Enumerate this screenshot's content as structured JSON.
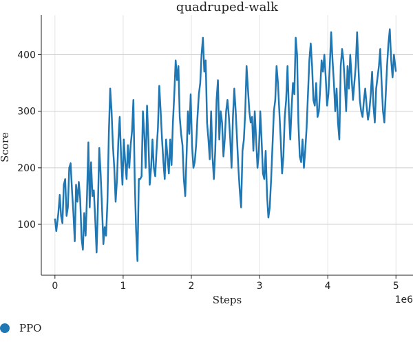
{
  "chart_data": {
    "type": "line",
    "title": "quadruped-walk",
    "xlabel": "Steps",
    "ylabel": "Score",
    "x_offset_label": "1e6",
    "xlim": [
      -0.2,
      5.25
    ],
    "ylim": [
      10,
      470
    ],
    "xticks": [
      0,
      1,
      2,
      3,
      4,
      5
    ],
    "yticks": [
      100,
      200,
      300,
      400
    ],
    "grid": true,
    "legend_position": "bottom-left",
    "series": [
      {
        "name": "PPO",
        "color": "#1f77b4",
        "points": [
          [
            0.0,
            110
          ],
          [
            0.02,
            88
          ],
          [
            0.05,
            120
          ],
          [
            0.07,
            152
          ],
          [
            0.09,
            115
          ],
          [
            0.11,
            102
          ],
          [
            0.13,
            170
          ],
          [
            0.15,
            180
          ],
          [
            0.17,
            115
          ],
          [
            0.19,
            130
          ],
          [
            0.21,
            200
          ],
          [
            0.23,
            208
          ],
          [
            0.25,
            160
          ],
          [
            0.27,
            120
          ],
          [
            0.29,
            70
          ],
          [
            0.31,
            170
          ],
          [
            0.33,
            140
          ],
          [
            0.35,
            175
          ],
          [
            0.37,
            145
          ],
          [
            0.39,
            75
          ],
          [
            0.41,
            55
          ],
          [
            0.43,
            120
          ],
          [
            0.45,
            80
          ],
          [
            0.47,
            150
          ],
          [
            0.49,
            245
          ],
          [
            0.51,
            130
          ],
          [
            0.53,
            210
          ],
          [
            0.55,
            150
          ],
          [
            0.57,
            160
          ],
          [
            0.59,
            110
          ],
          [
            0.61,
            50
          ],
          [
            0.63,
            130
          ],
          [
            0.65,
            235
          ],
          [
            0.67,
            190
          ],
          [
            0.69,
            130
          ],
          [
            0.71,
            65
          ],
          [
            0.73,
            95
          ],
          [
            0.75,
            80
          ],
          [
            0.77,
            140
          ],
          [
            0.79,
            260
          ],
          [
            0.81,
            340
          ],
          [
            0.83,
            300
          ],
          [
            0.85,
            240
          ],
          [
            0.87,
            200
          ],
          [
            0.89,
            140
          ],
          [
            0.91,
            180
          ],
          [
            0.93,
            250
          ],
          [
            0.95,
            290
          ],
          [
            0.97,
            220
          ],
          [
            0.99,
            170
          ],
          [
            1.01,
            250
          ],
          [
            1.03,
            210
          ],
          [
            1.05,
            180
          ],
          [
            1.07,
            240
          ],
          [
            1.09,
            200
          ],
          [
            1.11,
            240
          ],
          [
            1.13,
            265
          ],
          [
            1.15,
            320
          ],
          [
            1.17,
            180
          ],
          [
            1.19,
            90
          ],
          [
            1.21,
            35
          ],
          [
            1.23,
            180
          ],
          [
            1.25,
            180
          ],
          [
            1.27,
            185
          ],
          [
            1.29,
            300
          ],
          [
            1.31,
            260
          ],
          [
            1.33,
            200
          ],
          [
            1.35,
            310
          ],
          [
            1.37,
            250
          ],
          [
            1.39,
            170
          ],
          [
            1.41,
            200
          ],
          [
            1.43,
            250
          ],
          [
            1.45,
            200
          ],
          [
            1.47,
            185
          ],
          [
            1.49,
            230
          ],
          [
            1.51,
            270
          ],
          [
            1.53,
            345
          ],
          [
            1.55,
            300
          ],
          [
            1.57,
            250
          ],
          [
            1.59,
            210
          ],
          [
            1.61,
            180
          ],
          [
            1.63,
            250
          ],
          [
            1.65,
            220
          ],
          [
            1.67,
            190
          ],
          [
            1.69,
            250
          ],
          [
            1.71,
            205
          ],
          [
            1.73,
            280
          ],
          [
            1.75,
            330
          ],
          [
            1.77,
            390
          ],
          [
            1.79,
            355
          ],
          [
            1.81,
            380
          ],
          [
            1.83,
            290
          ],
          [
            1.85,
            260
          ],
          [
            1.87,
            240
          ],
          [
            1.89,
            180
          ],
          [
            1.91,
            150
          ],
          [
            1.93,
            220
          ],
          [
            1.95,
            300
          ],
          [
            1.97,
            260
          ],
          [
            1.99,
            330
          ],
          [
            2.01,
            240
          ],
          [
            2.03,
            200
          ],
          [
            2.05,
            210
          ],
          [
            2.07,
            240
          ],
          [
            2.09,
            290
          ],
          [
            2.11,
            330
          ],
          [
            2.13,
            350
          ],
          [
            2.15,
            400
          ],
          [
            2.17,
            430
          ],
          [
            2.19,
            370
          ],
          [
            2.21,
            390
          ],
          [
            2.23,
            280
          ],
          [
            2.25,
            250
          ],
          [
            2.27,
            215
          ],
          [
            2.29,
            300
          ],
          [
            2.31,
            220
          ],
          [
            2.33,
            180
          ],
          [
            2.35,
            230
          ],
          [
            2.37,
            320
          ],
          [
            2.39,
            355
          ],
          [
            2.41,
            250
          ],
          [
            2.43,
            300
          ],
          [
            2.45,
            280
          ],
          [
            2.47,
            220
          ],
          [
            2.49,
            250
          ],
          [
            2.51,
            300
          ],
          [
            2.53,
            320
          ],
          [
            2.55,
            290
          ],
          [
            2.57,
            250
          ],
          [
            2.59,
            200
          ],
          [
            2.61,
            290
          ],
          [
            2.63,
            340
          ],
          [
            2.65,
            300
          ],
          [
            2.67,
            250
          ],
          [
            2.69,
            200
          ],
          [
            2.71,
            160
          ],
          [
            2.73,
            130
          ],
          [
            2.75,
            230
          ],
          [
            2.77,
            250
          ],
          [
            2.79,
            300
          ],
          [
            2.81,
            380
          ],
          [
            2.83,
            340
          ],
          [
            2.85,
            300
          ],
          [
            2.87,
            280
          ],
          [
            2.89,
            290
          ],
          [
            2.91,
            230
          ],
          [
            2.93,
            300
          ],
          [
            2.95,
            250
          ],
          [
            2.97,
            200
          ],
          [
            2.99,
            230
          ],
          [
            3.01,
            300
          ],
          [
            3.03,
            250
          ],
          [
            3.05,
            190
          ],
          [
            3.07,
            180
          ],
          [
            3.09,
            230
          ],
          [
            3.11,
            150
          ],
          [
            3.13,
            112
          ],
          [
            3.15,
            130
          ],
          [
            3.17,
            180
          ],
          [
            3.19,
            240
          ],
          [
            3.21,
            300
          ],
          [
            3.23,
            320
          ],
          [
            3.25,
            380
          ],
          [
            3.27,
            350
          ],
          [
            3.29,
            300
          ],
          [
            3.31,
            250
          ],
          [
            3.33,
            190
          ],
          [
            3.35,
            220
          ],
          [
            3.37,
            290
          ],
          [
            3.39,
            320
          ],
          [
            3.41,
            380
          ],
          [
            3.43,
            300
          ],
          [
            3.45,
            250
          ],
          [
            3.47,
            305
          ],
          [
            3.49,
            350
          ],
          [
            3.51,
            330
          ],
          [
            3.53,
            430
          ],
          [
            3.55,
            400
          ],
          [
            3.57,
            280
          ],
          [
            3.59,
            220
          ],
          [
            3.61,
            210
          ],
          [
            3.63,
            250
          ],
          [
            3.65,
            200
          ],
          [
            3.67,
            230
          ],
          [
            3.69,
            270
          ],
          [
            3.71,
            330
          ],
          [
            3.73,
            390
          ],
          [
            3.75,
            420
          ],
          [
            3.77,
            380
          ],
          [
            3.79,
            320
          ],
          [
            3.81,
            310
          ],
          [
            3.83,
            350
          ],
          [
            3.85,
            290
          ],
          [
            3.87,
            300
          ],
          [
            3.89,
            340
          ],
          [
            3.91,
            390
          ],
          [
            3.93,
            370
          ],
          [
            3.95,
            400
          ],
          [
            3.97,
            360
          ],
          [
            3.99,
            310
          ],
          [
            4.01,
            330
          ],
          [
            4.03,
            380
          ],
          [
            4.05,
            440
          ],
          [
            4.07,
            390
          ],
          [
            4.09,
            350
          ],
          [
            4.11,
            300
          ],
          [
            4.13,
            340
          ],
          [
            4.15,
            280
          ],
          [
            4.17,
            250
          ],
          [
            4.19,
            380
          ],
          [
            4.21,
            410
          ],
          [
            4.23,
            390
          ],
          [
            4.25,
            350
          ],
          [
            4.27,
            300
          ],
          [
            4.29,
            380
          ],
          [
            4.31,
            340
          ],
          [
            4.33,
            400
          ],
          [
            4.35,
            360
          ],
          [
            4.37,
            320
          ],
          [
            4.39,
            350
          ],
          [
            4.41,
            380
          ],
          [
            4.43,
            440
          ],
          [
            4.45,
            380
          ],
          [
            4.47,
            320
          ],
          [
            4.49,
            300
          ],
          [
            4.51,
            290
          ],
          [
            4.53,
            320
          ],
          [
            4.55,
            340
          ],
          [
            4.57,
            310
          ],
          [
            4.59,
            285
          ],
          [
            4.61,
            300
          ],
          [
            4.63,
            330
          ],
          [
            4.65,
            370
          ],
          [
            4.67,
            310
          ],
          [
            4.69,
            280
          ],
          [
            4.71,
            340
          ],
          [
            4.73,
            360
          ],
          [
            4.75,
            380
          ],
          [
            4.77,
            410
          ],
          [
            4.79,
            350
          ],
          [
            4.81,
            300
          ],
          [
            4.83,
            280
          ],
          [
            4.85,
            330
          ],
          [
            4.87,
            380
          ],
          [
            4.89,
            420
          ],
          [
            4.91,
            445
          ],
          [
            4.93,
            390
          ],
          [
            4.95,
            360
          ],
          [
            4.97,
            400
          ],
          [
            4.99,
            380
          ],
          [
            5.0,
            370
          ]
        ]
      }
    ]
  }
}
